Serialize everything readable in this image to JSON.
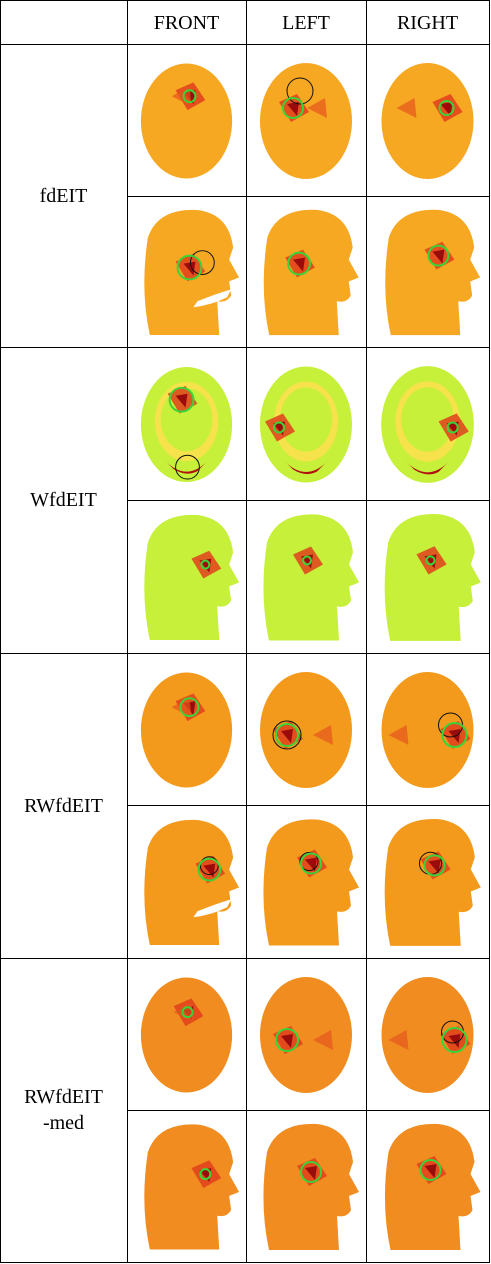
{
  "header": {
    "columns": [
      "FRONT",
      "LEFT",
      "RIGHT"
    ]
  },
  "rows": [
    {
      "label_lines": [
        "fdEIT"
      ]
    },
    {
      "label_lines": [
        "WfdEIT"
      ]
    },
    {
      "label_lines": [
        "RWfdEIT"
      ]
    },
    {
      "label_lines": [
        "RWfdEIT",
        "-med"
      ]
    }
  ]
}
